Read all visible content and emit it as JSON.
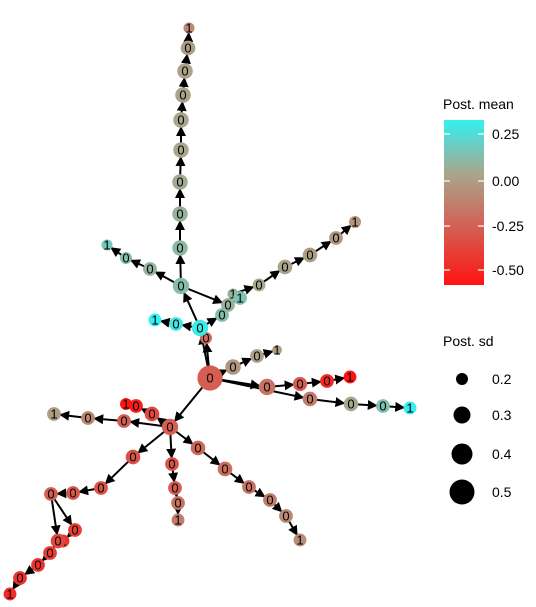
{
  "legend": {
    "color_title": "Post. mean",
    "color_ticks": [
      "0.25",
      "0.00",
      "-0.25",
      "-0.50"
    ],
    "size_title": "Post. sd",
    "size_ticks": [
      "0.2",
      "0.3",
      "0.4",
      "0.5"
    ]
  },
  "colors": {
    "high": "#33f0f0",
    "mid": "#a8a78e",
    "low": "#ff1414",
    "edge": "#000000"
  },
  "color_scale": {
    "min": -0.7,
    "max": 0.33,
    "mid": 0.0
  },
  "graph": {
    "nodes": [
      {
        "id": "r",
        "label": "0",
        "mean": -0.35,
        "sd": 0.5
      },
      {
        "id": "h",
        "label": "0",
        "mean": -0.3,
        "sd": 0.2
      },
      {
        "id": "a1",
        "label": "0",
        "mean": -0.08,
        "sd": 0.28
      },
      {
        "id": "a2",
        "label": "0",
        "mean": -0.03,
        "sd": 0.24
      },
      {
        "id": "a3",
        "label": "1",
        "mean": -0.05,
        "sd": 0.15
      },
      {
        "id": "b1",
        "label": "0",
        "mean": -0.25,
        "sd": 0.3
      },
      {
        "id": "b2",
        "label": "0",
        "mean": -0.35,
        "sd": 0.25
      },
      {
        "id": "b3",
        "label": "0",
        "mean": -0.6,
        "sd": 0.24
      },
      {
        "id": "b4",
        "label": "1",
        "mean": -0.7,
        "sd": 0.22
      },
      {
        "id": "c1",
        "label": "0",
        "mean": -0.2,
        "sd": 0.26
      },
      {
        "id": "c2",
        "label": "0",
        "mean": 0.0,
        "sd": 0.26
      },
      {
        "id": "c3",
        "label": "0",
        "mean": 0.12,
        "sd": 0.24
      },
      {
        "id": "c4",
        "label": "1",
        "mean": 0.32,
        "sd": 0.22
      },
      {
        "id": "m",
        "label": "0",
        "mean": 0.3,
        "sd": 0.3
      },
      {
        "id": "m1",
        "label": "0",
        "mean": 0.28,
        "sd": 0.24
      },
      {
        "id": "m2",
        "label": "1",
        "mean": 0.33,
        "sd": 0.22
      },
      {
        "id": "ur1",
        "label": "0",
        "mean": 0.1,
        "sd": 0.24
      },
      {
        "id": "ur2",
        "label": "1",
        "mean": 0.05,
        "sd": 0.18
      },
      {
        "id": "ur3",
        "label": "0",
        "mean": 0.0,
        "sd": 0.22
      },
      {
        "id": "ur4",
        "label": "0",
        "mean": -0.02,
        "sd": 0.26
      },
      {
        "id": "ur5",
        "label": "0",
        "mean": -0.05,
        "sd": 0.26
      },
      {
        "id": "ur6",
        "label": "0",
        "mean": -0.07,
        "sd": 0.24
      },
      {
        "id": "ur7",
        "label": "1",
        "mean": -0.08,
        "sd": 0.2
      },
      {
        "id": "v1",
        "label": "0",
        "mean": 0.1,
        "sd": 0.3
      },
      {
        "id": "v2",
        "label": "0",
        "mean": 0.08,
        "sd": 0.28
      },
      {
        "id": "v3",
        "label": "0",
        "mean": 0.05,
        "sd": 0.28
      },
      {
        "id": "v4",
        "label": "0",
        "mean": 0.02,
        "sd": 0.28
      },
      {
        "id": "v5",
        "label": "0",
        "mean": 0.0,
        "sd": 0.28
      },
      {
        "id": "v6",
        "label": "0",
        "mean": 0.0,
        "sd": 0.28
      },
      {
        "id": "v7",
        "label": "0",
        "mean": -0.02,
        "sd": 0.28
      },
      {
        "id": "v8",
        "label": "0",
        "mean": -0.03,
        "sd": 0.28
      },
      {
        "id": "v9",
        "label": "0",
        "mean": -0.05,
        "sd": 0.26
      },
      {
        "id": "v10",
        "label": "1",
        "mean": -0.15,
        "sd": 0.18
      },
      {
        "id": "v11",
        "label": "0",
        "mean": 0.05,
        "sd": 0.24
      },
      {
        "id": "v12",
        "label": "1",
        "mean": 0.12,
        "sd": 0.24
      },
      {
        "id": "l1",
        "label": "0",
        "mean": 0.05,
        "sd": 0.24
      },
      {
        "id": "l2",
        "label": "0",
        "mean": 0.1,
        "sd": 0.2
      },
      {
        "id": "l3",
        "label": "1",
        "mean": 0.15,
        "sd": 0.18
      },
      {
        "id": "j",
        "label": "0",
        "mean": -0.35,
        "sd": 0.3
      },
      {
        "id": "j1",
        "label": "0",
        "mean": -0.45,
        "sd": 0.26
      },
      {
        "id": "j2",
        "label": "0",
        "mean": -0.65,
        "sd": 0.24
      },
      {
        "id": "j3",
        "label": "1",
        "mean": -0.7,
        "sd": 0.2
      },
      {
        "id": "w1",
        "label": "0",
        "mean": -0.35,
        "sd": 0.24
      },
      {
        "id": "w2",
        "label": "0",
        "mean": -0.15,
        "sd": 0.24
      },
      {
        "id": "w3",
        "label": "1",
        "mean": -0.05,
        "sd": 0.24
      },
      {
        "id": "s1",
        "label": "0",
        "mean": -0.4,
        "sd": 0.26
      },
      {
        "id": "s2",
        "label": "0",
        "mean": -0.4,
        "sd": 0.24
      },
      {
        "id": "s3",
        "label": "0",
        "mean": -0.38,
        "sd": 0.24
      },
      {
        "id": "s4",
        "label": "0",
        "mean": -0.35,
        "sd": 0.24
      },
      {
        "id": "s5",
        "label": "0",
        "mean": -0.5,
        "sd": 0.24
      },
      {
        "id": "s6",
        "label": "1",
        "mean": -0.55,
        "sd": 0.22
      },
      {
        "id": "s7",
        "label": "0",
        "mean": -0.45,
        "sd": 0.26
      },
      {
        "id": "s8",
        "label": "0",
        "mean": -0.5,
        "sd": 0.24
      },
      {
        "id": "s9",
        "label": "0",
        "mean": -0.55,
        "sd": 0.24
      },
      {
        "id": "s10",
        "label": "0",
        "mean": -0.55,
        "sd": 0.24
      },
      {
        "id": "s11",
        "label": "1",
        "mean": -0.6,
        "sd": 0.22
      },
      {
        "id": "t1",
        "label": "0",
        "mean": -0.4,
        "sd": 0.24
      },
      {
        "id": "t2",
        "label": "0",
        "mean": -0.35,
        "sd": 0.24
      },
      {
        "id": "t3",
        "label": "0",
        "mean": -0.25,
        "sd": 0.24
      },
      {
        "id": "t4",
        "label": "1",
        "mean": -0.2,
        "sd": 0.22
      },
      {
        "id": "d1",
        "label": "0",
        "mean": -0.3,
        "sd": 0.26
      },
      {
        "id": "d2",
        "label": "0",
        "mean": -0.28,
        "sd": 0.26
      },
      {
        "id": "d3",
        "label": "0",
        "mean": -0.25,
        "sd": 0.24
      },
      {
        "id": "d4",
        "label": "0",
        "mean": -0.2,
        "sd": 0.24
      },
      {
        "id": "d5",
        "label": "0",
        "mean": -0.15,
        "sd": 0.24
      },
      {
        "id": "d6",
        "label": "1",
        "mean": -0.12,
        "sd": 0.22
      }
    ],
    "edges": [
      [
        "r",
        "h"
      ],
      [
        "r",
        "a1"
      ],
      [
        "a1",
        "a2"
      ],
      [
        "a2",
        "a3"
      ],
      [
        "r",
        "b1"
      ],
      [
        "b1",
        "b2"
      ],
      [
        "b2",
        "b3"
      ],
      [
        "b3",
        "b4"
      ],
      [
        "r",
        "c1"
      ],
      [
        "c1",
        "c2"
      ],
      [
        "c2",
        "c3"
      ],
      [
        "c3",
        "c4"
      ],
      [
        "r",
        "m"
      ],
      [
        "m",
        "m1"
      ],
      [
        "m1",
        "m2"
      ],
      [
        "m",
        "ur1"
      ],
      [
        "ur1",
        "ur2"
      ],
      [
        "ur2",
        "ur3"
      ],
      [
        "ur3",
        "ur4"
      ],
      [
        "ur4",
        "ur5"
      ],
      [
        "ur5",
        "ur6"
      ],
      [
        "ur6",
        "ur7"
      ],
      [
        "m",
        "v1"
      ],
      [
        "v1",
        "v2"
      ],
      [
        "v2",
        "v3"
      ],
      [
        "v3",
        "v4"
      ],
      [
        "v4",
        "v5"
      ],
      [
        "v5",
        "v6"
      ],
      [
        "v6",
        "v7"
      ],
      [
        "v7",
        "v8"
      ],
      [
        "v8",
        "v9"
      ],
      [
        "v9",
        "v10"
      ],
      [
        "v1",
        "v11"
      ],
      [
        "v11",
        "v12"
      ],
      [
        "v1",
        "l1"
      ],
      [
        "l1",
        "l2"
      ],
      [
        "l2",
        "l3"
      ],
      [
        "r",
        "j"
      ],
      [
        "j",
        "j1"
      ],
      [
        "j1",
        "j2"
      ],
      [
        "j2",
        "j3"
      ],
      [
        "j",
        "w1"
      ],
      [
        "w1",
        "w2"
      ],
      [
        "w2",
        "w3"
      ],
      [
        "j",
        "s1"
      ],
      [
        "s1",
        "s2"
      ],
      [
        "s2",
        "s3"
      ],
      [
        "s3",
        "s4"
      ],
      [
        "s4",
        "s5"
      ],
      [
        "s5",
        "s6"
      ],
      [
        "s4",
        "s7"
      ],
      [
        "s7",
        "s8"
      ],
      [
        "s8",
        "s9"
      ],
      [
        "s9",
        "s10"
      ],
      [
        "s10",
        "s11"
      ],
      [
        "j",
        "t1"
      ],
      [
        "t1",
        "t2"
      ],
      [
        "t2",
        "t3"
      ],
      [
        "t3",
        "t4"
      ],
      [
        "j",
        "d1"
      ],
      [
        "d1",
        "d2"
      ],
      [
        "d2",
        "d3"
      ],
      [
        "d3",
        "d4"
      ],
      [
        "d4",
        "d5"
      ],
      [
        "d5",
        "d6"
      ]
    ]
  }
}
